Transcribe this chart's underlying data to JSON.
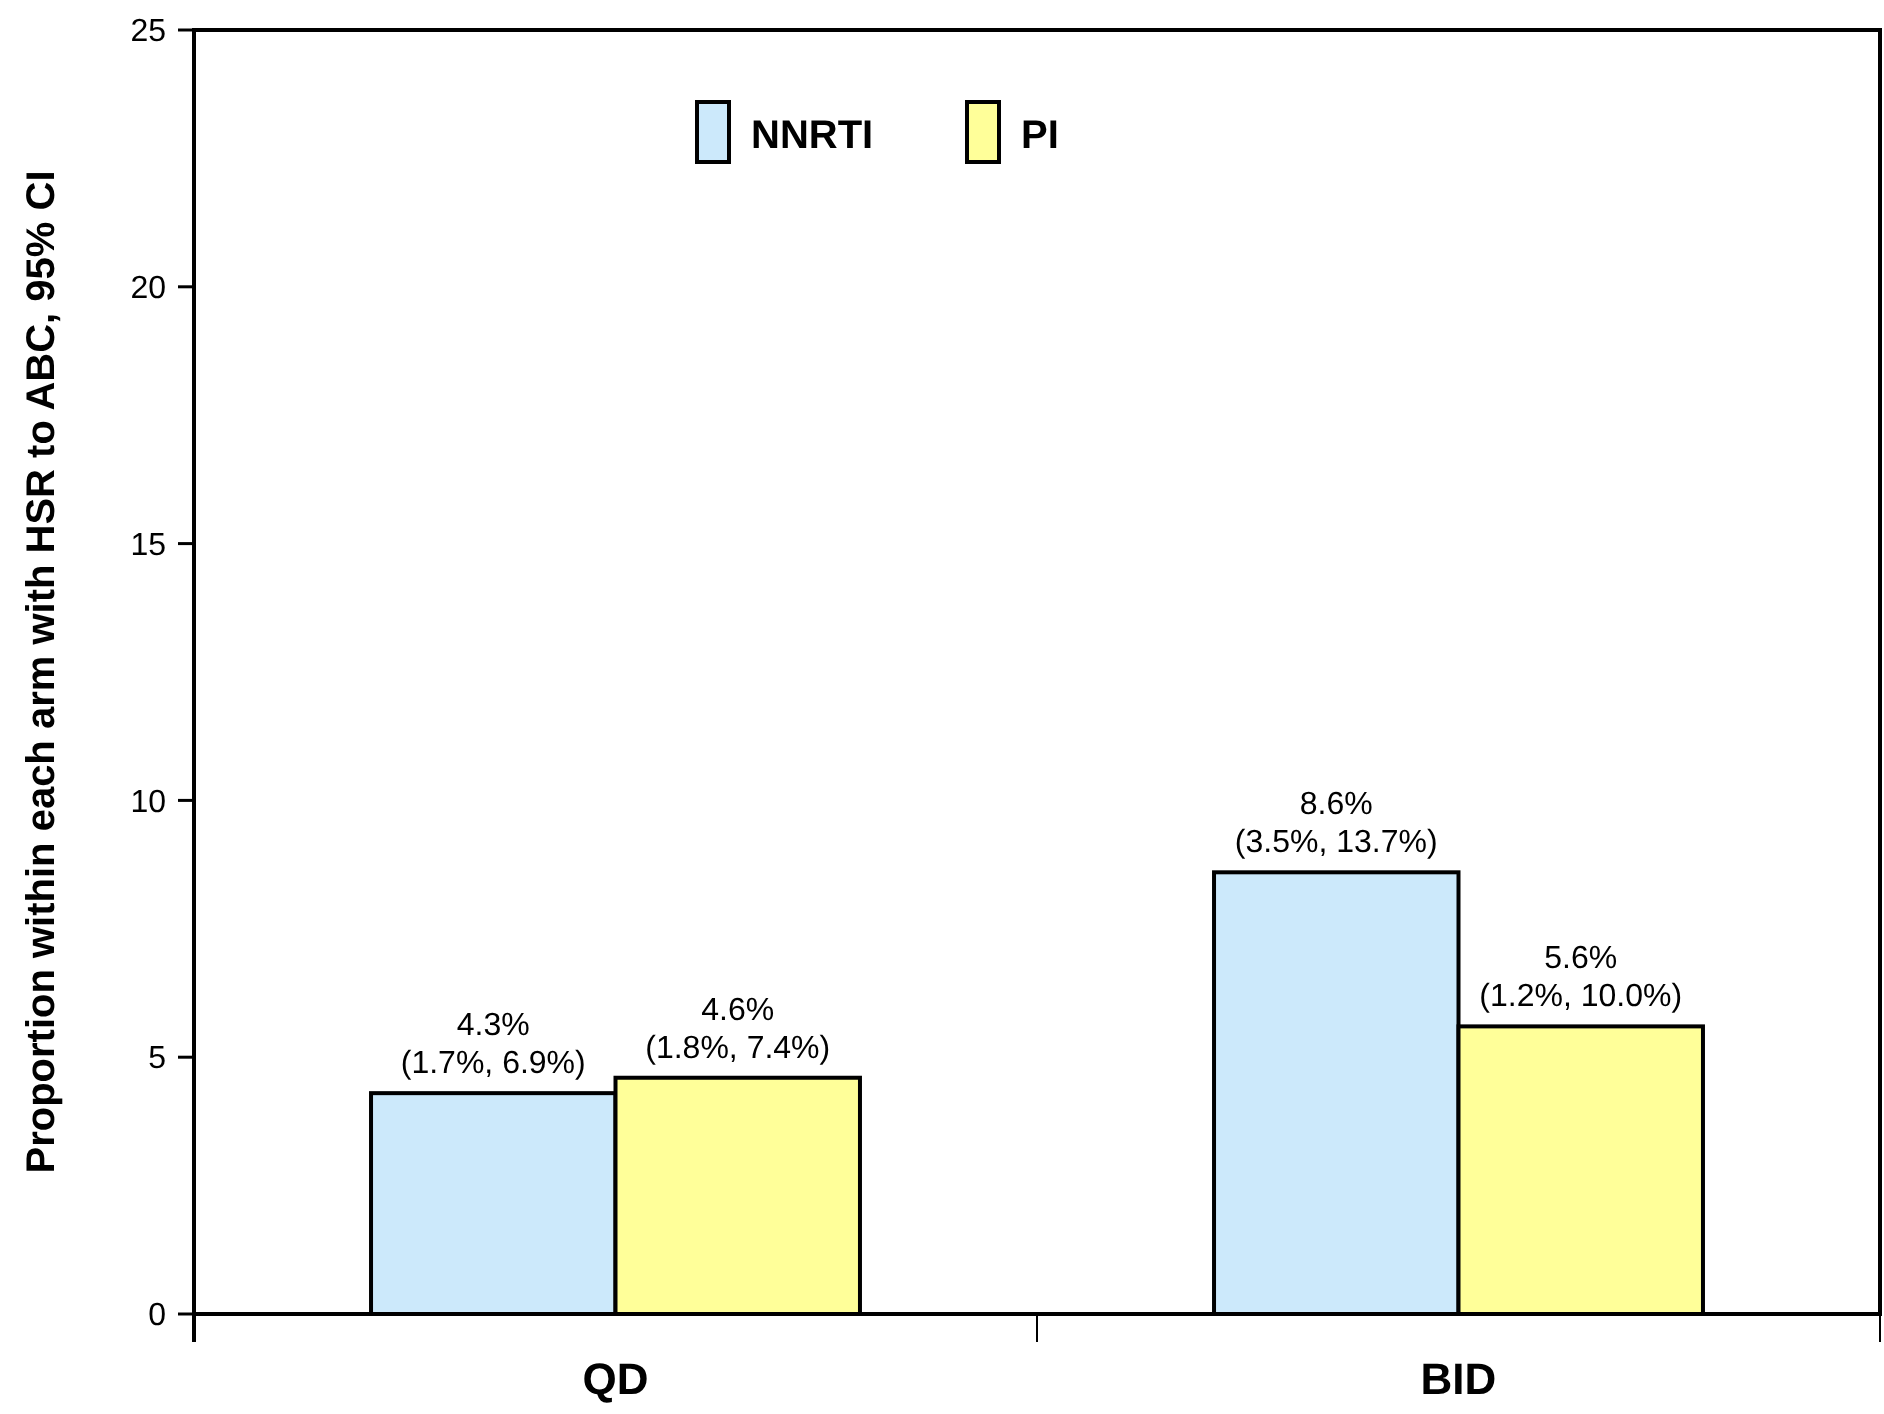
{
  "chart_data": {
    "type": "bar",
    "ylabel": "Proportion within each arm with HSR to ABC, 95% CI",
    "categories": [
      "QD",
      "BID"
    ],
    "series": [
      {
        "name": "NNRTI",
        "color": "#cce9fb",
        "values": [
          4.3,
          8.6
        ],
        "value_labels": [
          "4.3%\n(1.7%, 6.9%)",
          "8.6%\n(3.5%, 13.7%)"
        ]
      },
      {
        "name": "PI",
        "color": "#ffff99",
        "values": [
          4.6,
          5.6
        ],
        "value_labels": [
          "4.6%\n(1.8%, 7.4%)",
          "5.6%\n(1.2%, 10.0%)"
        ]
      }
    ],
    "ylim": [
      0,
      25
    ],
    "yticks": [
      0,
      5,
      10,
      15,
      20,
      25
    ],
    "grid": false,
    "legend": "top"
  }
}
